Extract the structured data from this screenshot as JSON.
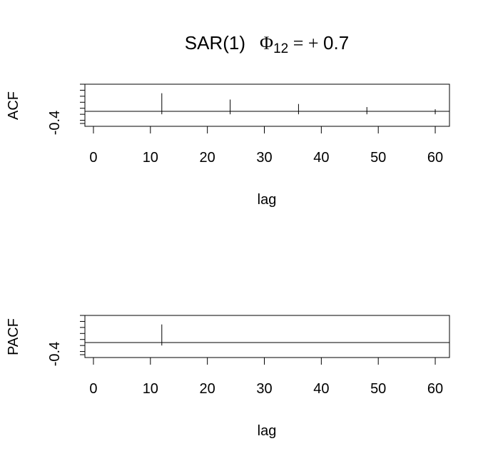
{
  "title": {
    "main": "SAR(1)",
    "phi": "Φ",
    "sub": "12",
    "eq": " = + ",
    "value": "0.7"
  },
  "chart_data": [
    {
      "type": "bar",
      "ylabel": "ACF",
      "xlabel": "lag",
      "ytick_labels": [
        "-0.4"
      ],
      "xticks": [
        0,
        10,
        20,
        30,
        40,
        50,
        60
      ],
      "xlim": [
        -1.5,
        62.5
      ],
      "ylim": [
        -0.4,
        1.0
      ],
      "grid": false,
      "lags": [
        12,
        24,
        36,
        48,
        60
      ],
      "values": [
        0.7,
        0.49,
        0.343,
        0.24,
        0.168
      ]
    },
    {
      "type": "bar",
      "ylabel": "PACF",
      "xlabel": "lag",
      "ytick_labels": [
        "-0.4"
      ],
      "xticks": [
        0,
        10,
        20,
        30,
        40,
        50,
        60
      ],
      "xlim": [
        -1.5,
        62.5
      ],
      "ylim": [
        -0.4,
        1.0
      ],
      "grid": false,
      "lags": [
        12
      ],
      "values": [
        0.7
      ]
    }
  ]
}
